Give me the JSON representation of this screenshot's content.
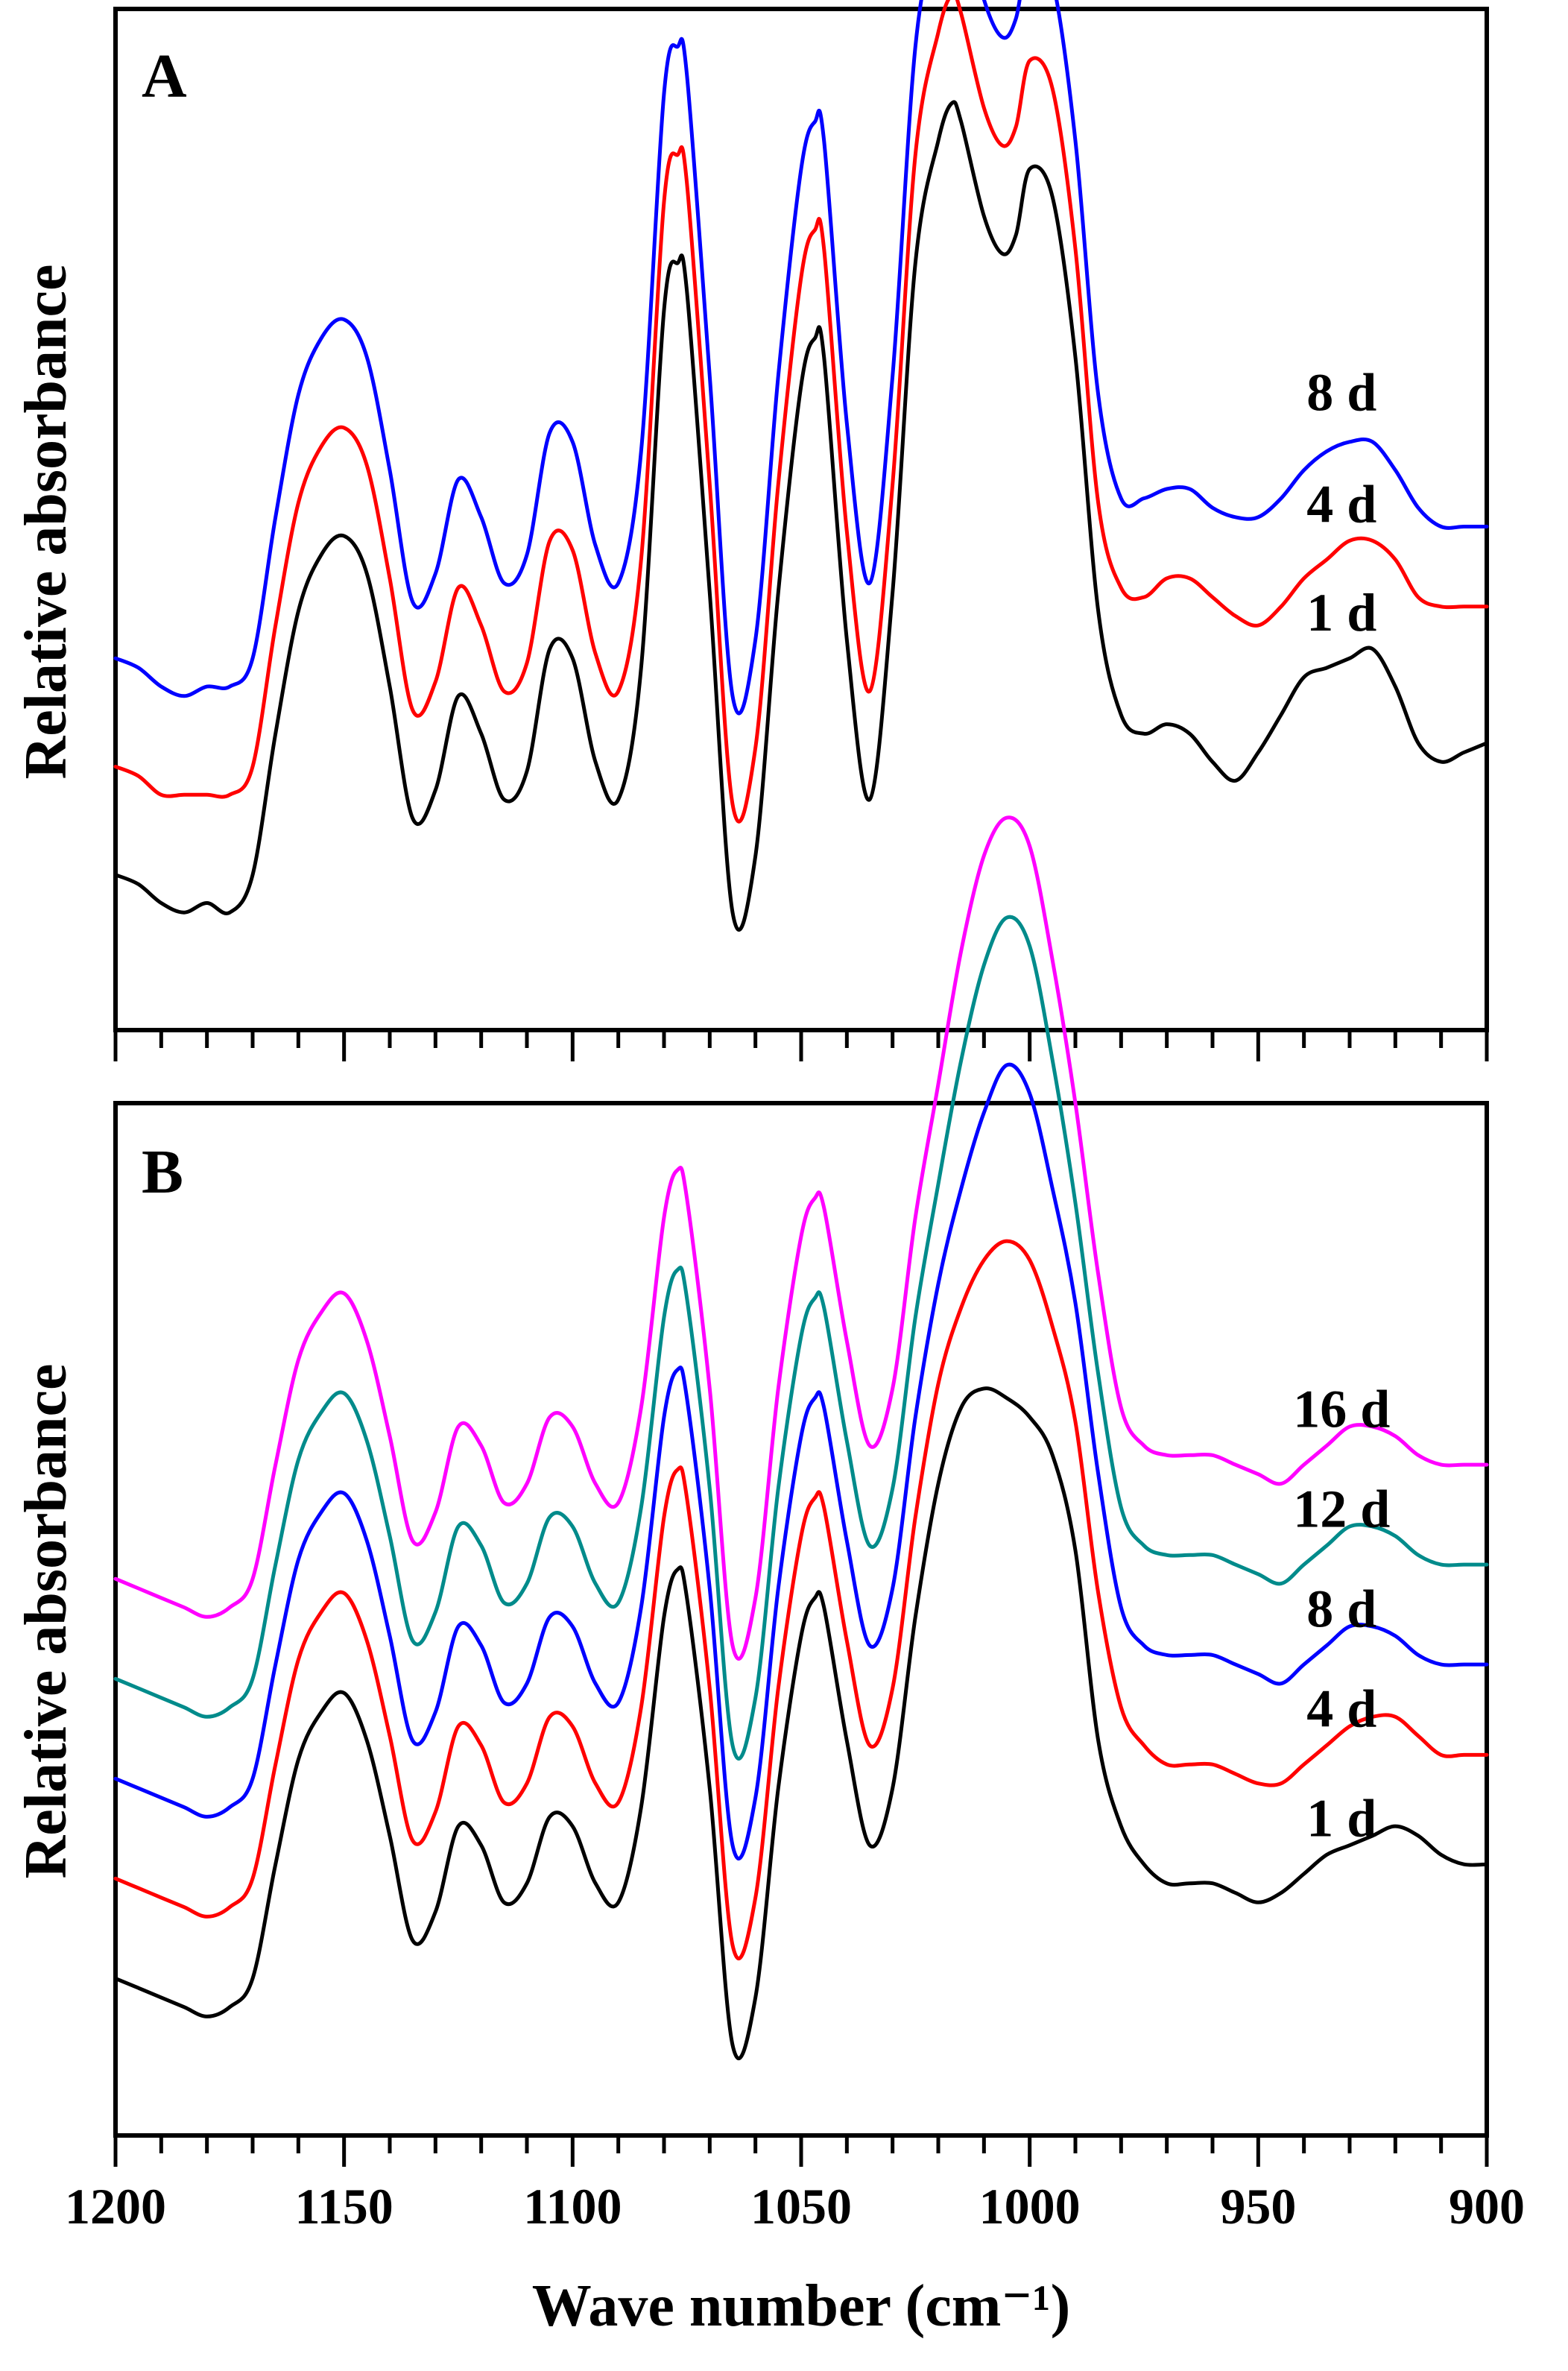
{
  "chart_data": [
    {
      "type": "line",
      "panel": "A",
      "ylabel": "Relative absorbance",
      "xlim": [
        1200,
        900
      ],
      "x_inverted": true,
      "ylim": [
        -6.5,
        102
      ],
      "y_ticks_shown": false,
      "x": [
        1200,
        1195,
        1190,
        1185,
        1180,
        1175,
        1170,
        1165,
        1160,
        1155,
        1150,
        1145,
        1140,
        1135,
        1130,
        1125,
        1120,
        1115,
        1110,
        1105,
        1100,
        1095,
        1090,
        1085,
        1080,
        1077,
        1075,
        1070,
        1065,
        1060,
        1055,
        1050,
        1047,
        1045,
        1040,
        1035,
        1030,
        1025,
        1020,
        1017,
        1015,
        1010,
        1006,
        1003,
        1000,
        995,
        990,
        985,
        980,
        975,
        970,
        965,
        960,
        955,
        950,
        945,
        940,
        935,
        930,
        925,
        920,
        915,
        910,
        905,
        900
      ],
      "series": [
        {
          "name": "1 d",
          "label": "1 d",
          "color": "#000000",
          "offset": 0,
          "values": [
            10,
            9,
            7,
            6,
            7,
            6,
            10,
            25,
            38,
            44,
            46,
            42,
            30,
            16,
            19,
            29,
            25,
            18,
            21,
            34,
            33,
            22,
            18,
            32,
            70,
            75,
            72,
            40,
            6,
            12,
            40,
            62,
            67,
            65,
            35,
            18,
            40,
            75,
            88,
            92,
            90,
            80,
            76,
            78,
            85,
            82,
            65,
            38,
            27,
            25,
            26,
            25,
            22,
            20,
            23,
            27,
            31,
            32,
            33,
            34,
            30,
            24,
            22,
            23,
            24
          ]
        },
        {
          "name": "4 d",
          "label": "4 d",
          "color": "#ff0000",
          "offset": 11.5,
          "values": [
            10,
            9,
            7,
            7,
            7,
            7,
            10,
            25,
            38,
            44,
            46,
            42,
            30,
            16,
            19,
            29,
            25,
            18,
            21,
            34,
            33,
            22,
            18,
            32,
            70,
            75,
            72,
            40,
            6,
            12,
            40,
            62,
            67,
            65,
            35,
            18,
            40,
            75,
            88,
            92,
            90,
            80,
            76,
            78,
            85,
            82,
            65,
            38,
            29,
            28,
            30,
            30,
            28,
            26,
            25,
            27,
            30,
            32,
            34,
            34,
            32,
            28,
            27,
            27,
            27
          ]
        },
        {
          "name": "8 d",
          "label": "8 d",
          "color": "#0000ff",
          "offset": 23,
          "values": [
            10,
            9,
            7,
            6,
            7,
            7,
            10,
            25,
            38,
            44,
            46,
            42,
            30,
            16,
            19,
            29,
            25,
            18,
            21,
            34,
            33,
            22,
            18,
            32,
            70,
            75,
            72,
            40,
            6,
            12,
            40,
            62,
            67,
            65,
            35,
            18,
            40,
            75,
            88,
            92,
            90,
            80,
            76,
            78,
            85,
            82,
            65,
            38,
            27,
            27,
            28,
            28,
            26,
            25,
            25,
            27,
            30,
            32,
            33,
            33,
            30,
            26,
            24,
            24,
            24
          ]
        }
      ]
    },
    {
      "type": "line",
      "panel": "B",
      "ylabel": "Relative absorbance",
      "xlabel": "Wave number (cm⁻¹)",
      "xlim": [
        1200,
        900
      ],
      "x_inverted": true,
      "x_ticks": [
        "1200",
        "1150",
        "1100",
        "1050",
        "1000",
        "950",
        "900"
      ],
      "ylim": [
        -6.5,
        102
      ],
      "y_ticks_shown": false,
      "x": [
        1200,
        1195,
        1190,
        1185,
        1180,
        1175,
        1170,
        1165,
        1160,
        1155,
        1150,
        1145,
        1140,
        1135,
        1130,
        1125,
        1120,
        1115,
        1110,
        1105,
        1100,
        1095,
        1090,
        1085,
        1080,
        1077,
        1075,
        1070,
        1065,
        1060,
        1055,
        1050,
        1047,
        1045,
        1040,
        1035,
        1030,
        1025,
        1020,
        1015,
        1010,
        1005,
        1000,
        995,
        990,
        985,
        980,
        975,
        970,
        965,
        960,
        955,
        950,
        945,
        940,
        935,
        930,
        925,
        920,
        915,
        910,
        905,
        900
      ],
      "series": [
        {
          "name": "1 d",
          "label": "1 d",
          "color": "#000000",
          "offset": 0,
          "values": [
            10,
            9,
            8,
            7,
            6,
            7,
            10,
            22,
            33,
            38,
            40,
            35,
            25,
            14,
            17,
            26,
            24,
            18,
            20,
            27,
            26,
            20,
            18,
            28,
            48,
            53,
            50,
            30,
            3,
            8,
            30,
            46,
            50,
            49,
            35,
            24,
            30,
            48,
            62,
            70,
            72,
            71,
            69,
            65,
            55,
            35,
            26,
            22,
            20,
            20,
            20,
            19,
            18,
            19,
            21,
            23,
            24,
            25,
            26,
            25,
            23,
            22,
            22
          ]
        },
        {
          "name": "4 d",
          "label": "4 d",
          "color": "#ff0000",
          "offset": 10.5,
          "values": [
            10,
            9,
            8,
            7,
            6,
            7,
            10,
            22,
            33,
            38,
            40,
            35,
            25,
            14,
            17,
            26,
            24,
            18,
            20,
            27,
            26,
            20,
            18,
            28,
            48,
            53,
            50,
            30,
            3,
            8,
            30,
            46,
            50,
            49,
            35,
            24,
            30,
            48,
            62,
            70,
            75,
            77,
            75,
            68,
            58,
            40,
            28,
            24,
            22,
            22,
            22,
            21,
            20,
            20,
            22,
            24,
            26,
            27,
            27,
            25,
            23,
            23,
            23
          ]
        },
        {
          "name": "8 d",
          "label": "8 d",
          "color": "#0000ff",
          "offset": 21,
          "values": [
            10,
            9,
            8,
            7,
            6,
            7,
            10,
            22,
            33,
            38,
            40,
            35,
            25,
            14,
            17,
            26,
            24,
            18,
            20,
            27,
            26,
            20,
            18,
            28,
            48,
            53,
            50,
            30,
            3,
            8,
            30,
            46,
            50,
            49,
            35,
            24,
            30,
            48,
            62,
            72,
            80,
            85,
            82,
            72,
            60,
            42,
            28,
            24,
            23,
            23,
            23,
            22,
            21,
            20,
            22,
            24,
            26,
            26,
            25,
            23,
            22,
            22,
            22
          ]
        },
        {
          "name": "12 d",
          "label": "12 d",
          "color": "#008b8b",
          "offset": 31.5,
          "values": [
            10,
            9,
            8,
            7,
            6,
            7,
            10,
            22,
            33,
            38,
            40,
            35,
            25,
            14,
            17,
            26,
            24,
            18,
            20,
            27,
            26,
            20,
            18,
            28,
            48,
            53,
            50,
            30,
            3,
            8,
            30,
            46,
            50,
            49,
            35,
            24,
            30,
            48,
            62,
            75,
            85,
            90,
            87,
            75,
            60,
            42,
            28,
            24,
            23,
            23,
            23,
            22,
            21,
            20,
            22,
            24,
            26,
            26,
            25,
            23,
            22,
            22,
            22
          ]
        },
        {
          "name": "16 d",
          "label": "16 d",
          "color": "#ff00ff",
          "offset": 42,
          "values": [
            10,
            9,
            8,
            7,
            6,
            7,
            10,
            22,
            33,
            38,
            40,
            35,
            25,
            14,
            17,
            26,
            24,
            18,
            20,
            27,
            26,
            20,
            18,
            28,
            48,
            53,
            50,
            30,
            3,
            8,
            30,
            46,
            50,
            49,
            35,
            24,
            30,
            48,
            62,
            76,
            86,
            90,
            87,
            75,
            60,
            42,
            28,
            24,
            23,
            23,
            23,
            22,
            21,
            20,
            22,
            24,
            26,
            26,
            25,
            23,
            22,
            22,
            22
          ]
        }
      ]
    }
  ]
}
